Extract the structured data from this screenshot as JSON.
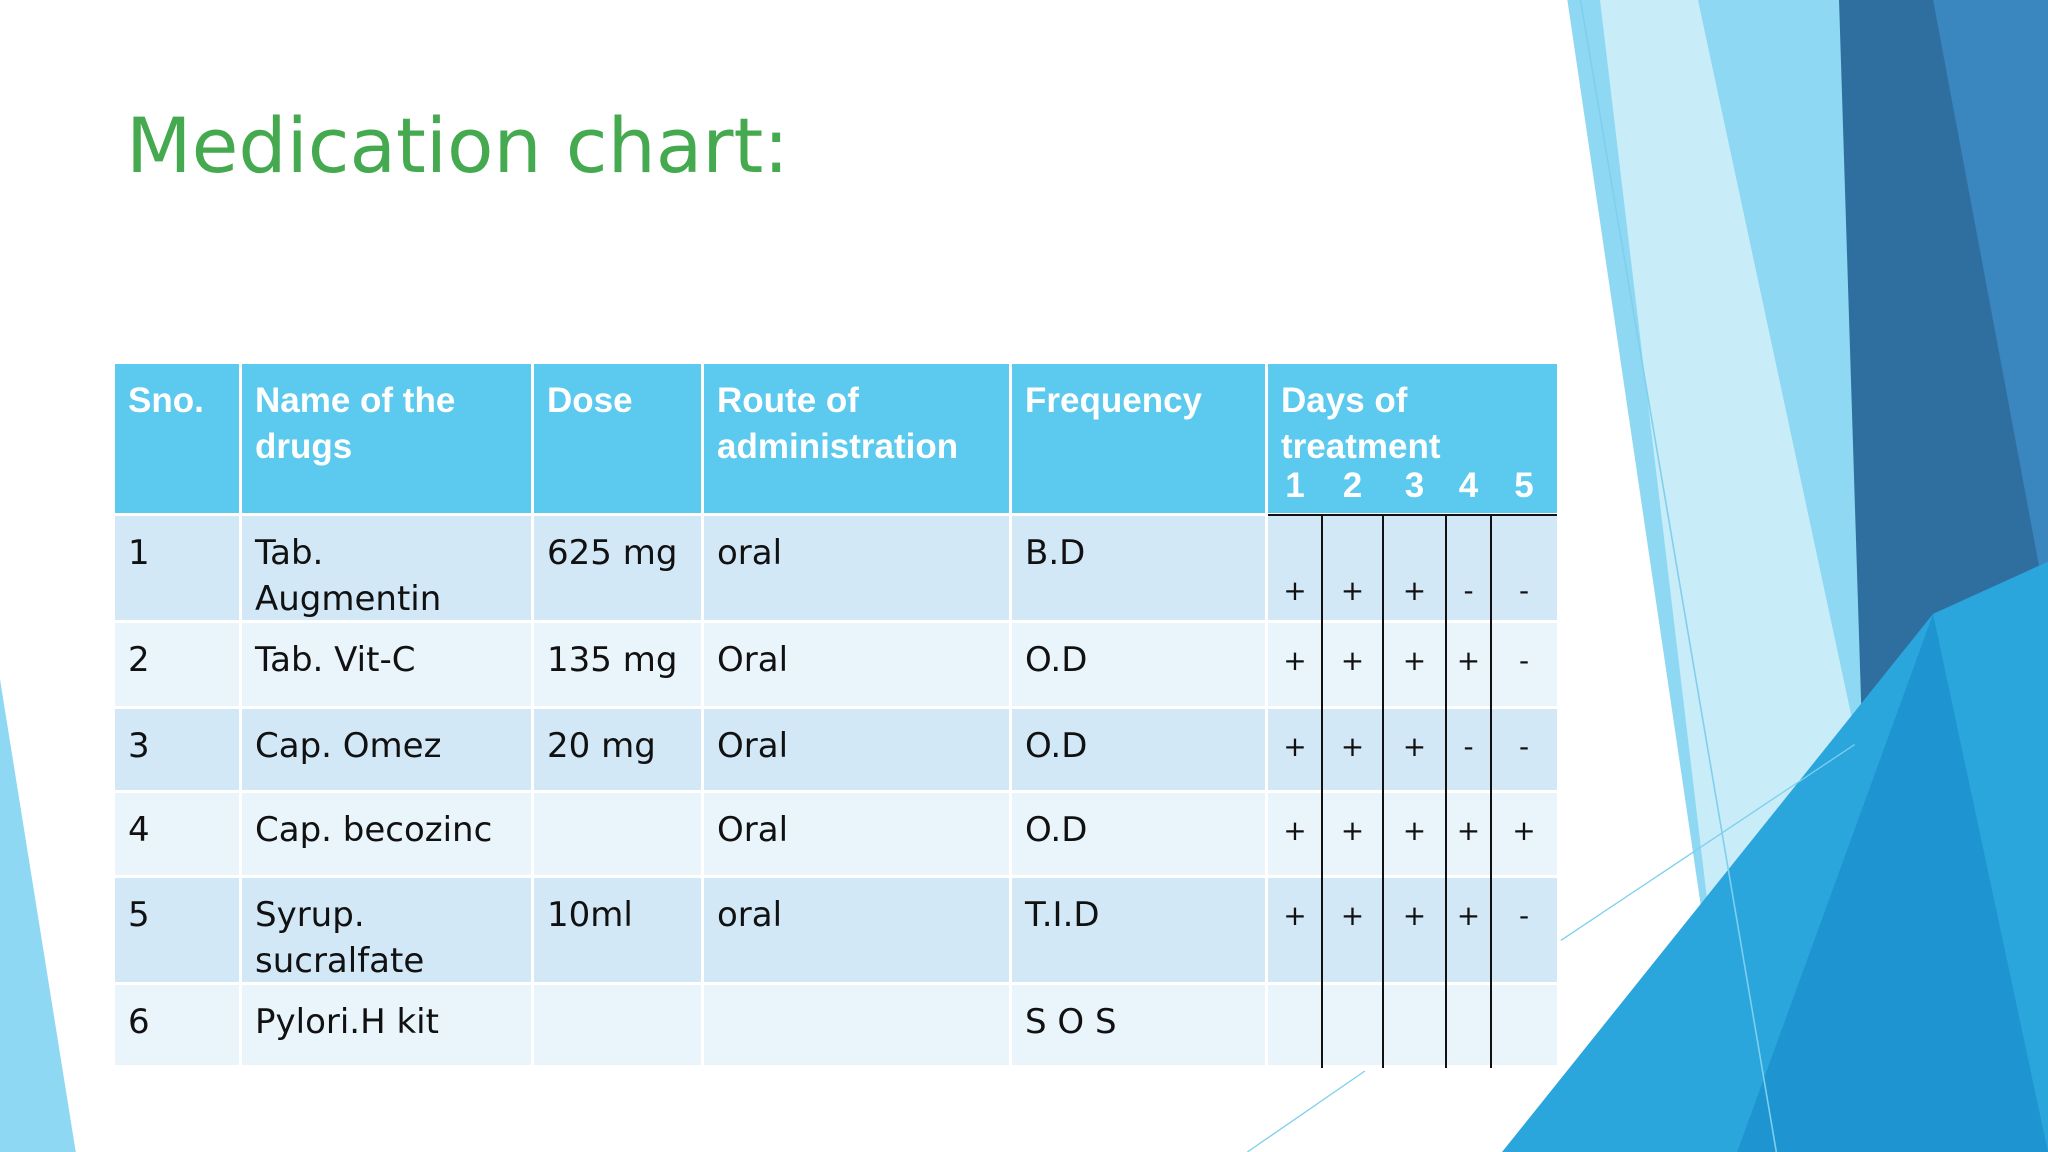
{
  "title": "Medication chart:",
  "table": {
    "header": [
      "Sno.",
      "Name of the drugs",
      "Dose",
      "Route of administration",
      "Frequency"
    ],
    "days_header": "Days of treatment",
    "day_numbers": [
      "1",
      "2",
      "3",
      "4",
      "5"
    ],
    "rows": [
      {
        "cells": [
          "1",
          "Tab. Augmentin",
          "625 mg",
          "oral",
          "B.D"
        ],
        "days": [
          "+",
          "+",
          "+",
          "-",
          "-"
        ]
      },
      {
        "cells": [
          "2",
          "Tab. Vit-C",
          "135 mg",
          "Oral",
          "O.D"
        ],
        "days": [
          "+",
          "+",
          "+",
          "+",
          "-"
        ]
      },
      {
        "cells": [
          "3",
          "Cap. Omez",
          "20 mg",
          "Oral",
          "O.D"
        ],
        "days": [
          "+",
          "+",
          "+",
          "-",
          "-"
        ]
      },
      {
        "cells": [
          "4",
          "Cap. becozinc",
          null,
          "Oral",
          "O.D"
        ],
        "days": [
          "+",
          "+",
          "+",
          "+",
          "+"
        ]
      },
      {
        "cells": [
          "5",
          "Syrup. sucralfate",
          "10ml",
          "oral",
          "T.I.D"
        ],
        "days": [
          "+",
          "+",
          "+",
          "+",
          "-"
        ]
      },
      {
        "cells": [
          "6",
          "Pylori.H kit",
          null,
          null,
          "S O S"
        ],
        "days": [
          null,
          null,
          null,
          null,
          null
        ]
      }
    ]
  }
}
